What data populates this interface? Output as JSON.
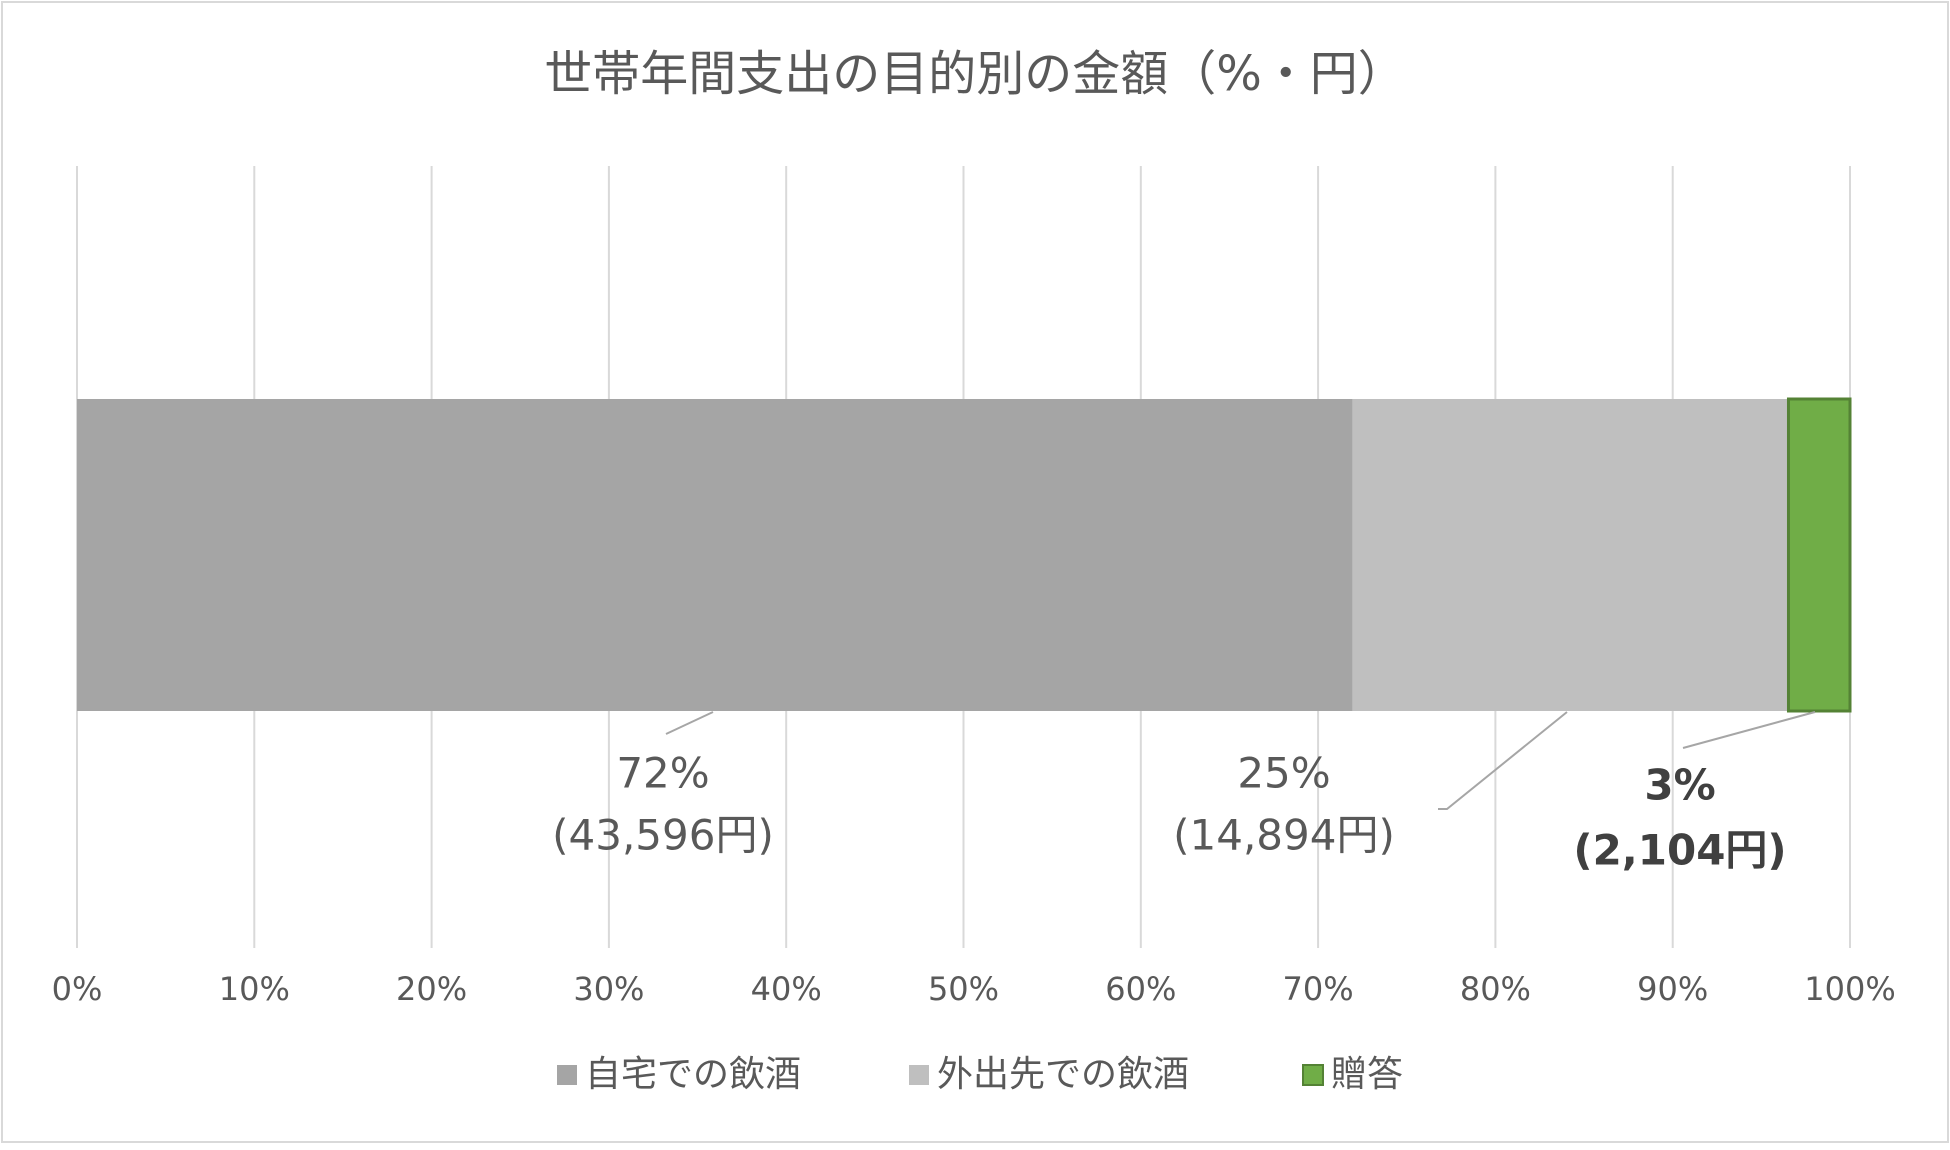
{
  "chart_data": {
    "type": "stacked-bar-horizontal",
    "title": "世帯年間支出の目的別の金額（%・円）",
    "categories": [
      null
    ],
    "series": [
      {
        "name": "自宅での飲酒",
        "color": "#a5a5a5",
        "values": [
          71.95
        ],
        "value_labels": [
          [
            "72%",
            "(43,596円)"
          ]
        ]
      },
      {
        "name": "外出先での飲酒",
        "color": "#bfbfbf",
        "values": [
          24.58
        ],
        "value_labels": [
          [
            "25%",
            "(14,894円)"
          ]
        ]
      },
      {
        "name": "贈答",
        "color": "#70ad47",
        "values": [
          3.47
        ],
        "value_labels": [
          [
            "3%",
            "(2,104円)"
          ]
        ]
      }
    ],
    "xlim": [
      0,
      100
    ],
    "xticks": [
      {
        "value": 0,
        "label": "0%"
      },
      {
        "value": 10,
        "label": "10%"
      },
      {
        "value": 20,
        "label": "20%"
      },
      {
        "value": 30,
        "label": "30%"
      },
      {
        "value": 40,
        "label": "40%"
      },
      {
        "value": 50,
        "label": "50%"
      },
      {
        "value": 60,
        "label": "60%"
      },
      {
        "value": 70,
        "label": "70%"
      },
      {
        "value": 80,
        "label": "80%"
      },
      {
        "value": 90,
        "label": "90%"
      },
      {
        "value": 100,
        "label": "100%"
      }
    ],
    "grid": true,
    "legend": "bottom"
  }
}
